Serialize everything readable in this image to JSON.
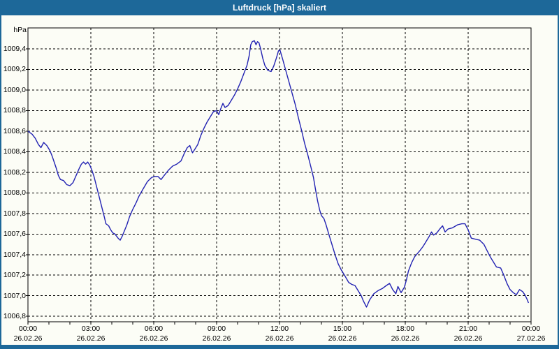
{
  "window": {
    "title": "Luftdruck [hPa] skaliert",
    "frame_color": "#1d6899",
    "background_color": "#fcfdf6"
  },
  "chart_data": {
    "type": "line",
    "title": "Luftdruck [hPa] skaliert",
    "unit_label": "hPa",
    "grid": "dashed-black",
    "legend_position": "none",
    "line_color": "#2222b2",
    "axis_color": "#000000",
    "xlim_hours": [
      0,
      24
    ],
    "ylim": [
      1006.75,
      1009.6
    ],
    "minor_x_tick_every_hours": 1,
    "y_ticks": [
      {
        "value": 1009.4,
        "label": "1009,4"
      },
      {
        "value": 1009.2,
        "label": "1009,2"
      },
      {
        "value": 1009.0,
        "label": "1009,0"
      },
      {
        "value": 1008.8,
        "label": "1008,8"
      },
      {
        "value": 1008.6,
        "label": "1008,6"
      },
      {
        "value": 1008.4,
        "label": "1008,4"
      },
      {
        "value": 1008.2,
        "label": "1008,2"
      },
      {
        "value": 1008.0,
        "label": "1008,0"
      },
      {
        "value": 1007.8,
        "label": "1007,8"
      },
      {
        "value": 1007.6,
        "label": "1007,6"
      },
      {
        "value": 1007.4,
        "label": "1007,4"
      },
      {
        "value": 1007.2,
        "label": "1007,2"
      },
      {
        "value": 1007.0,
        "label": "1007,0"
      },
      {
        "value": 1006.8,
        "label": "1006,8"
      }
    ],
    "x_ticks": [
      {
        "hours": 0,
        "time": "00:00",
        "date": "26.02.26",
        "gridline": false
      },
      {
        "hours": 3,
        "time": "03:00",
        "date": "26.02.26",
        "gridline": true
      },
      {
        "hours": 6,
        "time": "06:00",
        "date": "26.02.26",
        "gridline": true
      },
      {
        "hours": 9,
        "time": "09:00",
        "date": "26.02.26",
        "gridline": true
      },
      {
        "hours": 12,
        "time": "12:00",
        "date": "26.02.26",
        "gridline": true
      },
      {
        "hours": 15,
        "time": "15:00",
        "date": "26.02.26",
        "gridline": true
      },
      {
        "hours": 18,
        "time": "18:00",
        "date": "26.02.26",
        "gridline": true
      },
      {
        "hours": 21,
        "time": "21:00",
        "date": "26.02.26",
        "gridline": true
      },
      {
        "hours": 24,
        "time": "00:00",
        "date": "27.02.26",
        "gridline": false
      }
    ],
    "series": [
      {
        "name": "Luftdruck",
        "points": [
          [
            0.0,
            1008.6
          ],
          [
            0.2,
            1008.57
          ],
          [
            0.35,
            1008.53
          ],
          [
            0.5,
            1008.47
          ],
          [
            0.62,
            1008.44
          ],
          [
            0.75,
            1008.49
          ],
          [
            0.9,
            1008.46
          ],
          [
            1.05,
            1008.41
          ],
          [
            1.15,
            1008.36
          ],
          [
            1.25,
            1008.3
          ],
          [
            1.35,
            1008.24
          ],
          [
            1.45,
            1008.17
          ],
          [
            1.55,
            1008.13
          ],
          [
            1.7,
            1008.12
          ],
          [
            1.85,
            1008.08
          ],
          [
            2.0,
            1008.07
          ],
          [
            2.15,
            1008.1
          ],
          [
            2.3,
            1008.17
          ],
          [
            2.45,
            1008.24
          ],
          [
            2.55,
            1008.28
          ],
          [
            2.65,
            1008.3
          ],
          [
            2.75,
            1008.28
          ],
          [
            2.85,
            1008.3
          ],
          [
            2.95,
            1008.27
          ],
          [
            3.05,
            1008.22
          ],
          [
            3.15,
            1008.16
          ],
          [
            3.25,
            1008.08
          ],
          [
            3.35,
            1008.0
          ],
          [
            3.45,
            1007.92
          ],
          [
            3.55,
            1007.84
          ],
          [
            3.65,
            1007.76
          ],
          [
            3.72,
            1007.7
          ],
          [
            3.85,
            1007.68
          ],
          [
            3.95,
            1007.64
          ],
          [
            4.05,
            1007.61
          ],
          [
            4.15,
            1007.6
          ],
          [
            4.3,
            1007.56
          ],
          [
            4.4,
            1007.54
          ],
          [
            4.5,
            1007.58
          ],
          [
            4.62,
            1007.64
          ],
          [
            4.72,
            1007.69
          ],
          [
            4.85,
            1007.77
          ],
          [
            5.0,
            1007.84
          ],
          [
            5.15,
            1007.9
          ],
          [
            5.3,
            1007.97
          ],
          [
            5.5,
            1008.04
          ],
          [
            5.7,
            1008.11
          ],
          [
            5.9,
            1008.15
          ],
          [
            6.05,
            1008.16
          ],
          [
            6.2,
            1008.16
          ],
          [
            6.35,
            1008.13
          ],
          [
            6.5,
            1008.17
          ],
          [
            6.7,
            1008.22
          ],
          [
            6.9,
            1008.26
          ],
          [
            7.1,
            1008.28
          ],
          [
            7.3,
            1008.31
          ],
          [
            7.45,
            1008.38
          ],
          [
            7.6,
            1008.44
          ],
          [
            7.72,
            1008.46
          ],
          [
            7.85,
            1008.39
          ],
          [
            7.95,
            1008.42
          ],
          [
            8.1,
            1008.47
          ],
          [
            8.25,
            1008.56
          ],
          [
            8.4,
            1008.63
          ],
          [
            8.55,
            1008.69
          ],
          [
            8.7,
            1008.74
          ],
          [
            8.85,
            1008.79
          ],
          [
            9.0,
            1008.8
          ],
          [
            9.1,
            1008.76
          ],
          [
            9.2,
            1008.82
          ],
          [
            9.3,
            1008.87
          ],
          [
            9.4,
            1008.83
          ],
          [
            9.55,
            1008.85
          ],
          [
            9.7,
            1008.9
          ],
          [
            9.85,
            1008.95
          ],
          [
            10.0,
            1009.01
          ],
          [
            10.15,
            1009.08
          ],
          [
            10.3,
            1009.16
          ],
          [
            10.45,
            1009.24
          ],
          [
            10.55,
            1009.33
          ],
          [
            10.63,
            1009.44
          ],
          [
            10.7,
            1009.47
          ],
          [
            10.8,
            1009.48
          ],
          [
            10.88,
            1009.44
          ],
          [
            10.95,
            1009.47
          ],
          [
            11.02,
            1009.46
          ],
          [
            11.1,
            1009.4
          ],
          [
            11.2,
            1009.31
          ],
          [
            11.3,
            1009.24
          ],
          [
            11.45,
            1009.19
          ],
          [
            11.6,
            1009.18
          ],
          [
            11.72,
            1009.23
          ],
          [
            11.85,
            1009.31
          ],
          [
            11.95,
            1009.38
          ],
          [
            12.02,
            1009.39
          ],
          [
            12.15,
            1009.3
          ],
          [
            12.3,
            1009.19
          ],
          [
            12.45,
            1009.08
          ],
          [
            12.6,
            1008.97
          ],
          [
            12.75,
            1008.86
          ],
          [
            12.9,
            1008.73
          ],
          [
            13.05,
            1008.61
          ],
          [
            13.2,
            1008.48
          ],
          [
            13.35,
            1008.37
          ],
          [
            13.5,
            1008.25
          ],
          [
            13.62,
            1008.15
          ],
          [
            13.72,
            1008.03
          ],
          [
            13.82,
            1007.92
          ],
          [
            13.92,
            1007.83
          ],
          [
            14.0,
            1007.78
          ],
          [
            14.12,
            1007.75
          ],
          [
            14.22,
            1007.69
          ],
          [
            14.35,
            1007.6
          ],
          [
            14.5,
            1007.5
          ],
          [
            14.65,
            1007.4
          ],
          [
            14.8,
            1007.31
          ],
          [
            14.95,
            1007.25
          ],
          [
            15.1,
            1007.2
          ],
          [
            15.3,
            1007.13
          ],
          [
            15.45,
            1007.11
          ],
          [
            15.6,
            1007.1
          ],
          [
            15.75,
            1007.05
          ],
          [
            15.9,
            1007.0
          ],
          [
            16.0,
            1006.95
          ],
          [
            16.15,
            1006.89
          ],
          [
            16.3,
            1006.96
          ],
          [
            16.5,
            1007.02
          ],
          [
            16.7,
            1007.05
          ],
          [
            16.9,
            1007.07
          ],
          [
            17.1,
            1007.1
          ],
          [
            17.25,
            1007.12
          ],
          [
            17.4,
            1007.06
          ],
          [
            17.55,
            1007.02
          ],
          [
            17.65,
            1007.09
          ],
          [
            17.8,
            1007.03
          ],
          [
            17.95,
            1007.08
          ],
          [
            18.05,
            1007.15
          ],
          [
            18.15,
            1007.24
          ],
          [
            18.3,
            1007.32
          ],
          [
            18.45,
            1007.38
          ],
          [
            18.7,
            1007.44
          ],
          [
            18.85,
            1007.48
          ],
          [
            19.0,
            1007.53
          ],
          [
            19.15,
            1007.58
          ],
          [
            19.25,
            1007.62
          ],
          [
            19.35,
            1007.59
          ],
          [
            19.5,
            1007.61
          ],
          [
            19.65,
            1007.65
          ],
          [
            19.78,
            1007.68
          ],
          [
            19.9,
            1007.62
          ],
          [
            20.05,
            1007.65
          ],
          [
            20.25,
            1007.66
          ],
          [
            20.5,
            1007.69
          ],
          [
            20.7,
            1007.7
          ],
          [
            20.85,
            1007.7
          ],
          [
            21.0,
            1007.64
          ],
          [
            21.15,
            1007.56
          ],
          [
            21.35,
            1007.55
          ],
          [
            21.55,
            1007.54
          ],
          [
            21.75,
            1007.5
          ],
          [
            21.9,
            1007.44
          ],
          [
            22.05,
            1007.38
          ],
          [
            22.2,
            1007.33
          ],
          [
            22.35,
            1007.28
          ],
          [
            22.55,
            1007.27
          ],
          [
            22.7,
            1007.2
          ],
          [
            22.85,
            1007.12
          ],
          [
            23.0,
            1007.06
          ],
          [
            23.15,
            1007.03
          ],
          [
            23.3,
            1007.01
          ],
          [
            23.45,
            1007.06
          ],
          [
            23.6,
            1007.04
          ],
          [
            23.7,
            1007.01
          ],
          [
            23.8,
            1006.97
          ],
          [
            23.88,
            1006.93
          ]
        ]
      }
    ]
  }
}
